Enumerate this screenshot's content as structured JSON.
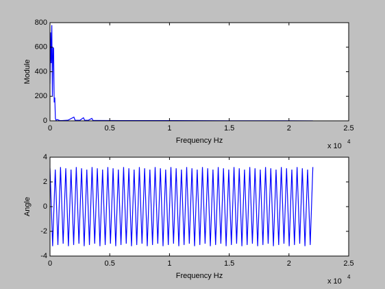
{
  "chart_data": [
    {
      "type": "line",
      "y_label": "Module",
      "x_label": "Frequency Hz",
      "x_multiplier": {
        "base": "x 10",
        "exponent": "4"
      },
      "color": "#0000ff",
      "x": [
        0,
        0.005,
        0.01,
        0.015,
        0.02,
        0.025,
        0.03,
        0.035,
        0.04,
        0.045,
        0.05,
        0.06,
        0.08,
        0.1,
        0.15,
        0.2,
        0.21,
        0.25,
        0.28,
        0.29,
        0.32,
        0.35,
        0.36,
        0.4,
        0.6,
        1.0,
        1.5,
        2.0,
        2.2
      ],
      "values": [
        300,
        720,
        470,
        780,
        200,
        600,
        590,
        150,
        190,
        20,
        5,
        10,
        3,
        2,
        5,
        30,
        5,
        4,
        25,
        5,
        4,
        20,
        3,
        3,
        2,
        2,
        1,
        1,
        0
      ],
      "xlim": [
        0,
        2.5
      ],
      "xticks": [
        0,
        0.5,
        1,
        1.5,
        2,
        2.5
      ],
      "ylim": [
        0,
        800
      ],
      "yticks": [
        0,
        200,
        400,
        600,
        800
      ]
    },
    {
      "type": "line",
      "y_label": "Angle",
      "x_label": "Frequency Hz",
      "x_multiplier": {
        "base": "x 10",
        "exponent": "4"
      },
      "color": "#0000ff",
      "x": [
        0,
        0.022,
        0.044,
        0.066,
        0.088,
        0.11,
        0.132,
        0.154,
        0.176,
        0.198,
        0.22,
        0.242,
        0.264,
        0.286,
        0.308,
        0.33,
        0.352,
        0.374,
        0.396,
        0.418,
        0.44,
        0.462,
        0.484,
        0.506,
        0.528,
        0.55,
        0.572,
        0.594,
        0.616,
        0.638,
        0.66,
        0.682,
        0.704,
        0.726,
        0.748,
        0.77,
        0.792,
        0.814,
        0.836,
        0.858,
        0.88,
        0.902,
        0.924,
        0.946,
        0.968,
        0.99,
        1.012,
        1.034,
        1.056,
        1.078,
        1.1,
        1.122,
        1.144,
        1.166,
        1.188,
        1.21,
        1.232,
        1.254,
        1.276,
        1.298,
        1.32,
        1.342,
        1.364,
        1.386,
        1.408,
        1.43,
        1.452,
        1.474,
        1.496,
        1.518,
        1.54,
        1.562,
        1.584,
        1.606,
        1.628,
        1.65,
        1.672,
        1.694,
        1.716,
        1.738,
        1.76,
        1.782,
        1.804,
        1.826,
        1.848,
        1.87,
        1.892,
        1.914,
        1.936,
        1.958,
        1.98,
        2.002,
        2.024,
        2.046,
        2.068,
        2.09,
        2.112,
        2.134,
        2.156,
        2.178,
        2.2
      ],
      "values": [
        3.1,
        -3.2,
        3.0,
        -3.1,
        3.2,
        -3.0,
        3.1,
        -3.2,
        3.0,
        -3.1,
        3.2,
        -3.0,
        3.1,
        -3.2,
        3.0,
        -3.1,
        3.2,
        -3.0,
        3.1,
        -3.2,
        3.0,
        -3.1,
        3.2,
        -3.0,
        3.1,
        -3.2,
        3.0,
        -3.1,
        3.2,
        -3.0,
        3.1,
        -3.2,
        3.0,
        -3.1,
        3.2,
        -3.0,
        3.1,
        -3.2,
        3.0,
        -3.1,
        3.2,
        -3.0,
        3.1,
        -3.2,
        3.0,
        -3.1,
        3.2,
        -3.0,
        3.1,
        -3.2,
        3.0,
        -3.1,
        3.2,
        -3.0,
        3.1,
        -3.2,
        3.0,
        -3.1,
        3.2,
        -3.0,
        3.1,
        -3.2,
        3.0,
        -3.1,
        3.2,
        -3.0,
        3.1,
        -3.2,
        3.0,
        -3.1,
        3.2,
        -3.0,
        3.1,
        -3.2,
        3.0,
        -3.1,
        3.2,
        -3.0,
        3.1,
        -3.2,
        3.0,
        -3.1,
        3.2,
        -3.0,
        3.1,
        -3.2,
        3.0,
        -3.1,
        3.2,
        -3.0,
        3.1,
        -3.2,
        3.0,
        -3.1,
        3.2,
        -3.0,
        3.1,
        -3.2,
        3.0,
        -3.1,
        3.2
      ],
      "xlim": [
        0,
        2.5
      ],
      "xticks": [
        0,
        0.5,
        1,
        1.5,
        2,
        2.5
      ],
      "ylim": [
        -4,
        4
      ],
      "yticks": [
        -4,
        -2,
        0,
        2,
        4
      ]
    }
  ]
}
